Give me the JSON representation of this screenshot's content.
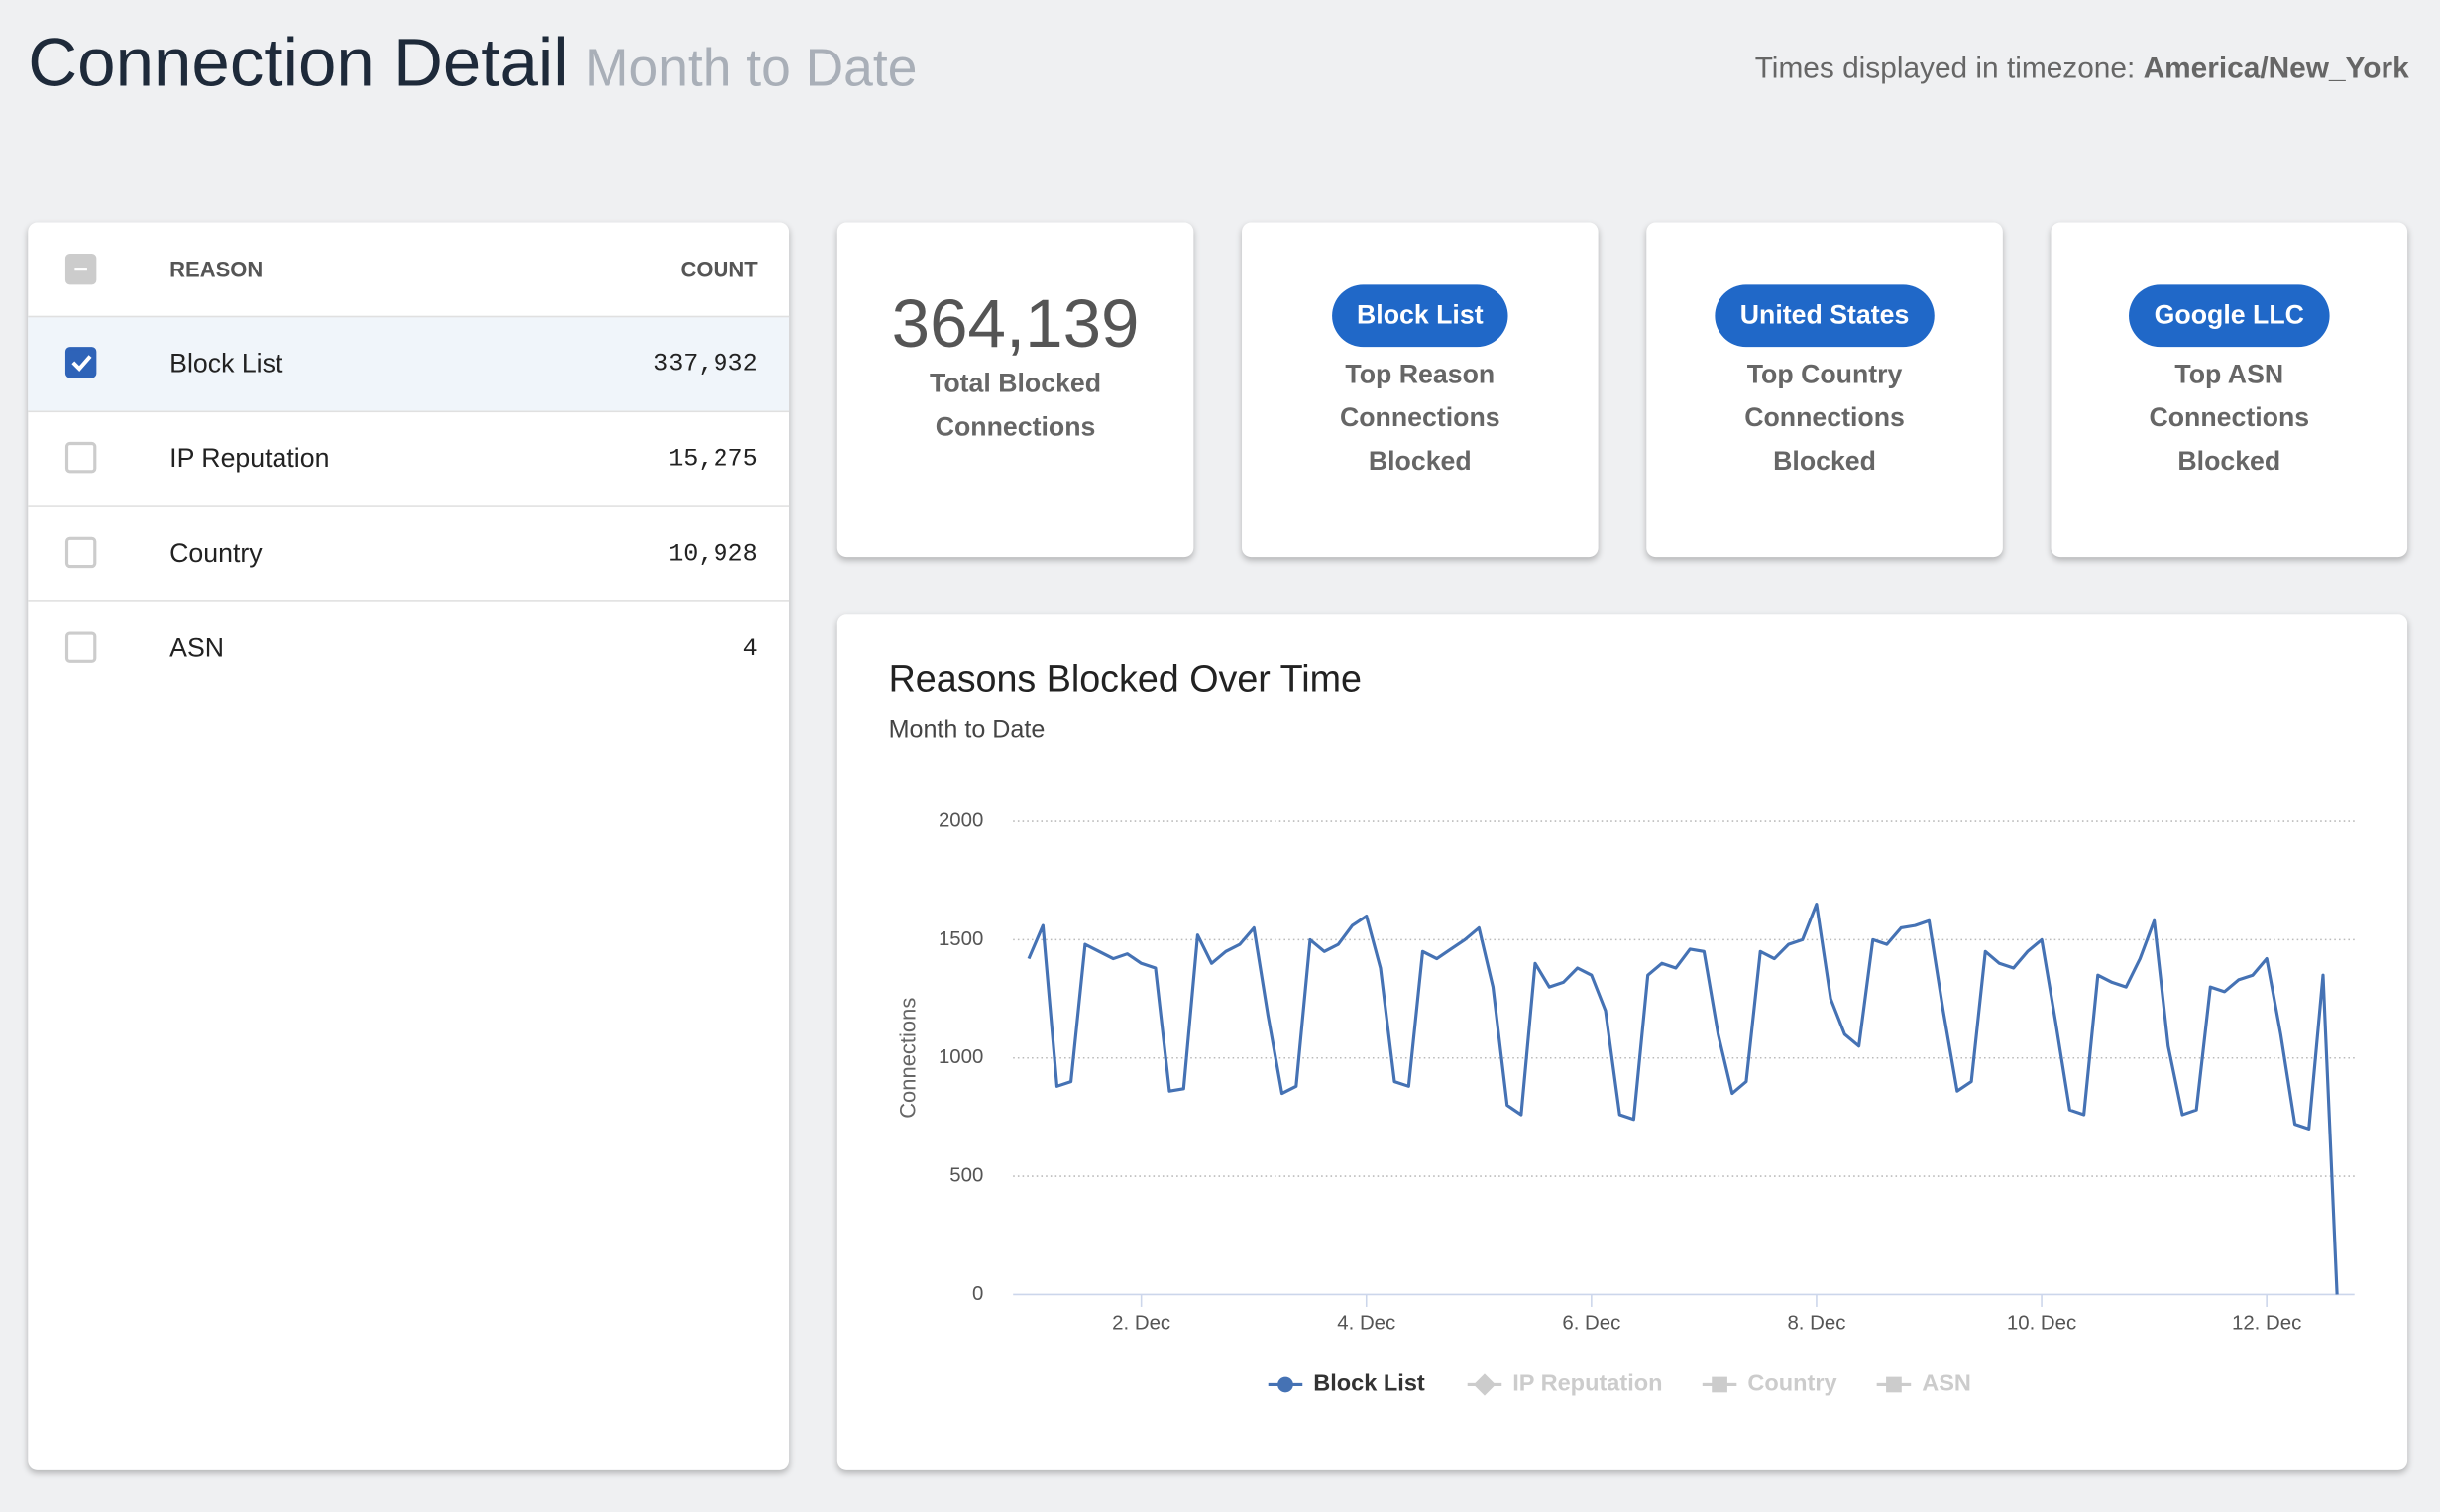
{
  "header": {
    "title": "Connection Detail",
    "subtitle": "Month to Date",
    "timezone_label": "Times displayed in timezone:",
    "timezone": "America/New_York"
  },
  "table": {
    "columns": [
      "REASON",
      "COUNT"
    ],
    "rows": [
      {
        "reason": "Block List",
        "count": "337,932",
        "checked": true
      },
      {
        "reason": "IP Reputation",
        "count": "15,275",
        "checked": false
      },
      {
        "reason": "Country",
        "count": "10,928",
        "checked": false
      },
      {
        "reason": "ASN",
        "count": "4",
        "checked": false
      }
    ]
  },
  "cards": [
    {
      "value": "364,139",
      "label": "Total Blocked Connections"
    },
    {
      "pill": "Block List",
      "label": "Top Reason Connections Blocked"
    },
    {
      "pill": "United States",
      "label": "Top Country Connections Blocked"
    },
    {
      "pill": "Google LLC",
      "label": "Top ASN Connections Blocked"
    }
  ],
  "chart": {
    "type": "line",
    "title": "Reasons Blocked Over Time",
    "subtitle": "Month to Date",
    "y_label": "Connections",
    "xlim": [
      0.86,
      12.78
    ],
    "ylim": [
      0,
      2000
    ],
    "yticks": [
      0,
      500,
      1000,
      1500,
      2000
    ],
    "xticks": [
      {
        "value": 2,
        "label": "2. Dec"
      },
      {
        "value": 4,
        "label": "4. Dec"
      },
      {
        "value": 6,
        "label": "6. Dec"
      },
      {
        "value": 8,
        "label": "8. Dec"
      },
      {
        "value": 10,
        "label": "10. Dec"
      },
      {
        "value": 12,
        "label": "12. Dec"
      }
    ],
    "grid": true,
    "x": [
      1,
      1.125,
      1.25,
      1.375,
      1.5,
      1.625,
      1.75,
      1.875,
      2,
      2.125,
      2.25,
      2.375,
      2.5,
      2.625,
      2.75,
      2.875,
      3,
      3.125,
      3.25,
      3.375,
      3.5,
      3.625,
      3.75,
      3.875,
      4,
      4.125,
      4.25,
      4.375,
      4.5,
      4.625,
      4.75,
      4.875,
      5,
      5.125,
      5.25,
      5.375,
      5.5,
      5.625,
      5.75,
      5.875,
      6,
      6.125,
      6.25,
      6.375,
      6.5,
      6.625,
      6.75,
      6.875,
      7,
      7.125,
      7.25,
      7.375,
      7.5,
      7.625,
      7.75,
      7.875,
      8,
      8.125,
      8.25,
      8.375,
      8.5,
      8.625,
      8.75,
      8.875,
      9,
      9.125,
      9.25,
      9.375,
      9.5,
      9.625,
      9.75,
      9.875,
      10,
      10.125,
      10.25,
      10.375,
      10.5,
      10.625,
      10.75,
      10.875,
      11,
      11.125,
      11.25,
      11.375,
      11.5,
      11.625,
      11.75,
      11.875,
      12,
      12.125,
      12.25,
      12.375,
      12.5,
      12.625
    ],
    "series": [
      {
        "name": "Block List",
        "color": "#4572b4",
        "values": [
          1420,
          1560,
          880,
          900,
          1480,
          1450,
          1420,
          1440,
          1400,
          1380,
          860,
          870,
          1520,
          1400,
          1450,
          1480,
          1550,
          1180,
          850,
          880,
          1500,
          1450,
          1480,
          1560,
          1600,
          1380,
          900,
          880,
          1450,
          1420,
          1460,
          1500,
          1550,
          1300,
          800,
          760,
          1400,
          1300,
          1320,
          1380,
          1350,
          1200,
          760,
          740,
          1350,
          1400,
          1380,
          1460,
          1450,
          1100,
          850,
          900,
          1450,
          1420,
          1480,
          1500,
          1650,
          1250,
          1100,
          1050,
          1500,
          1480,
          1550,
          1560,
          1580,
          1200,
          860,
          900,
          1450,
          1400,
          1380,
          1450,
          1500,
          1150,
          780,
          760,
          1350,
          1320,
          1300,
          1420,
          1580,
          1050,
          760,
          780,
          1300,
          1280,
          1330,
          1350,
          1420,
          1100,
          720,
          700,
          1350,
          0
        ]
      },
      {
        "name": "IP Reputation",
        "color": "#cccccc",
        "hidden": true
      },
      {
        "name": "Country",
        "color": "#cccccc",
        "hidden": true
      },
      {
        "name": "ASN",
        "color": "#cccccc",
        "hidden": true
      }
    ]
  }
}
